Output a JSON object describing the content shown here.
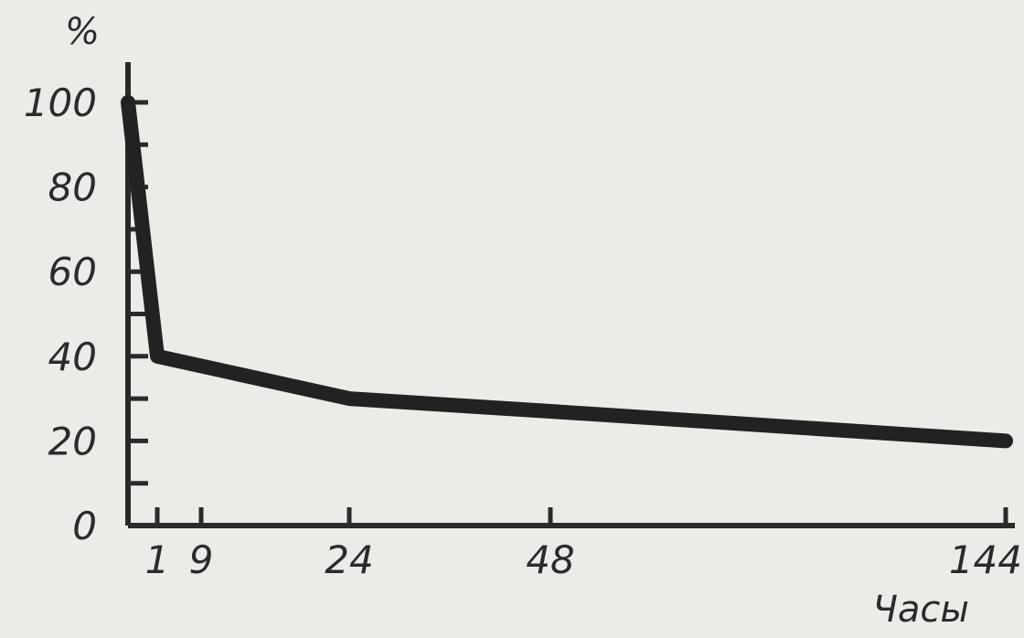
{
  "chart_data": {
    "type": "line",
    "ylabel": "%",
    "xlabel": "Часы",
    "x": [
      0,
      1,
      24,
      48,
      144
    ],
    "series": [
      {
        "values": [
          100,
          40,
          30,
          27,
          20
        ]
      }
    ],
    "xticks": [
      1,
      9,
      24,
      48,
      144
    ],
    "xtick_labels": [
      "1",
      "9",
      "24",
      "48",
      "144"
    ],
    "yticks": [
      0,
      20,
      40,
      60,
      80,
      100
    ],
    "ytick_labels": [
      "0",
      "20",
      "40",
      "60",
      "80",
      "100"
    ],
    "ylim": [
      0,
      100
    ],
    "grid": false,
    "colors": {
      "line": "#222222",
      "axis": "#2a2a2a",
      "text": "#2b2b2b",
      "background": "#ecebe7"
    }
  }
}
